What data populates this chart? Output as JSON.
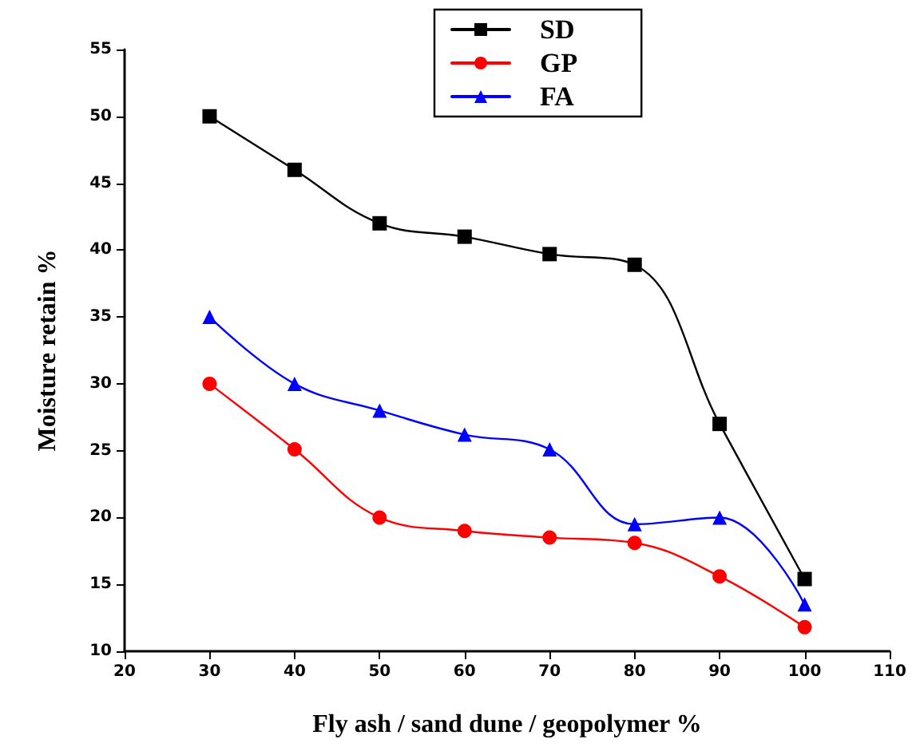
{
  "chart_data": {
    "type": "line",
    "xlabel": "Fly ash / sand dune / geopolymer %",
    "ylabel": "Moisture retain %",
    "x": [
      30,
      40,
      50,
      60,
      70,
      80,
      90,
      100
    ],
    "series": [
      {
        "name": "SD",
        "color": "#000000",
        "marker": "square",
        "values": [
          50,
          46,
          42,
          41,
          39.7,
          38.9,
          27,
          15.4
        ]
      },
      {
        "name": "GP",
        "color": "#ff0000",
        "marker": "circle",
        "values": [
          30,
          25.1,
          20,
          19,
          18.5,
          18.1,
          15.6,
          11.8
        ]
      },
      {
        "name": "FA",
        "color": "#0000ff",
        "marker": "triangle",
        "values": [
          35,
          30,
          28,
          26.2,
          25.1,
          19.5,
          20,
          13.5
        ]
      }
    ],
    "xlim": [
      20,
      110
    ],
    "xticks": [
      20,
      30,
      40,
      50,
      60,
      70,
      80,
      90,
      100,
      110
    ],
    "ylim": [
      10,
      55
    ],
    "yticks": [
      10,
      15,
      20,
      25,
      30,
      35,
      40,
      45,
      50,
      55
    ],
    "grid": false,
    "legend": "top",
    "line_style": "solid"
  }
}
